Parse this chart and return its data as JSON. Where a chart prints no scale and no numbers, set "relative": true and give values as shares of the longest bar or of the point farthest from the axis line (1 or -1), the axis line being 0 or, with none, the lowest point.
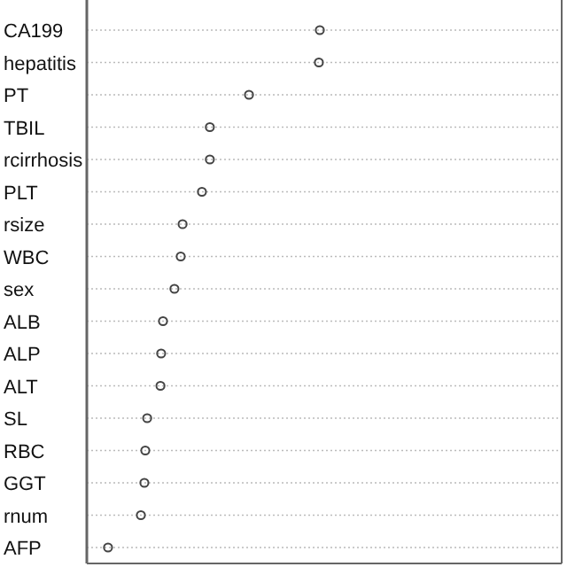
{
  "chart_data": {
    "type": "scatter",
    "orientation": "horizontal",
    "relative": true,
    "grid": "y",
    "marker": "circle",
    "categories": [
      "CA199",
      "hepatitis",
      "PT",
      "TBIL",
      "rcirrhosis",
      "PLT",
      "rsize",
      "WBC",
      "sex",
      "ALB",
      "ALP",
      "ALT",
      "SL",
      "RBC",
      "GGT",
      "rnum",
      "AFP"
    ],
    "series": [
      {
        "color": "#444444",
        "values": [
          1,
          0.996,
          0.696,
          0.528,
          0.528,
          0.494,
          0.411,
          0.403,
          0.376,
          0.327,
          0.319,
          0.316,
          0.259,
          0.251,
          0.247,
          0.232,
          0.091
        ]
      }
    ]
  }
}
